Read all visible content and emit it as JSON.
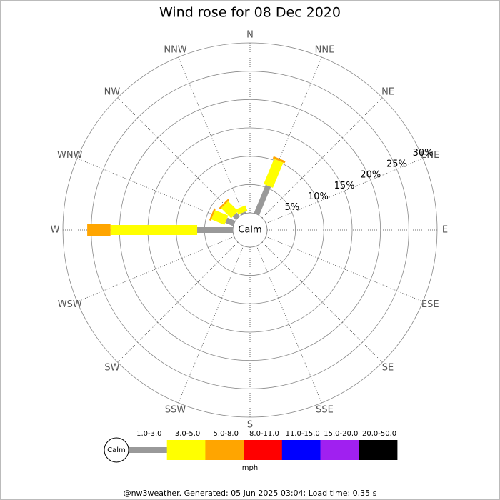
{
  "chart_data": {
    "type": "windrose",
    "title": "Wind rose for 08 Dec 2020",
    "categories": [
      "N",
      "NNE",
      "NE",
      "ENE",
      "E",
      "ESE",
      "SE",
      "SSE",
      "S",
      "SSW",
      "SW",
      "WSW",
      "W",
      "WNW",
      "NW",
      "NNW"
    ],
    "center_label": "Calm",
    "series": [
      {
        "name": "1.0-3.0",
        "color": "#999999",
        "values": [
          0,
          5.4,
          0,
          0,
          0,
          0,
          0,
          0,
          0,
          0,
          0,
          0,
          6.3,
          1.5,
          0.8,
          0.3
        ]
      },
      {
        "name": "3.0-5.0",
        "color": "#ffff00",
        "values": [
          0,
          4.8,
          0,
          0,
          0,
          0,
          0,
          0,
          0,
          0,
          0,
          0,
          15.3,
          2.5,
          2.5,
          1.0
        ]
      },
      {
        "name": "5.0-8.0",
        "color": "#ffa500",
        "values": [
          0,
          0.4,
          0,
          0,
          0,
          0,
          0,
          0,
          0,
          0,
          0,
          0,
          4.1,
          0.3,
          0.3,
          0
        ]
      },
      {
        "name": "8.0-11.0",
        "color": "#ff0000",
        "values": [
          0,
          0,
          0,
          0,
          0,
          0,
          0,
          0,
          0,
          0,
          0,
          0,
          0,
          0,
          0,
          0
        ]
      },
      {
        "name": "11.0-15.0",
        "color": "#0000ff",
        "values": [
          0,
          0,
          0,
          0,
          0,
          0,
          0,
          0,
          0,
          0,
          0,
          0,
          0,
          0,
          0,
          0
        ]
      },
      {
        "name": "15.0-20.0",
        "color": "#a020f0",
        "values": [
          0,
          0,
          0,
          0,
          0,
          0,
          0,
          0,
          0,
          0,
          0,
          0,
          0,
          0,
          0,
          0
        ]
      },
      {
        "name": "20.0-50.0",
        "color": "#000000",
        "values": [
          0,
          0,
          0,
          0,
          0,
          0,
          0,
          0,
          0,
          0,
          0,
          0,
          0,
          0,
          0,
          0
        ]
      }
    ],
    "ylim": [
      0,
      30
    ],
    "yticks": [
      {
        "value": 5,
        "label": "5%"
      },
      {
        "value": 10,
        "label": "10%"
      },
      {
        "value": 15,
        "label": "15%"
      },
      {
        "value": 20,
        "label": "20%"
      },
      {
        "value": 25,
        "label": "25%"
      },
      {
        "value": 30,
        "label": "30%"
      }
    ],
    "legend_unit": "mph",
    "footer": "@nw3weather. Generated: 05 Jun 2025 03:04; Load time: 0.35 s"
  }
}
